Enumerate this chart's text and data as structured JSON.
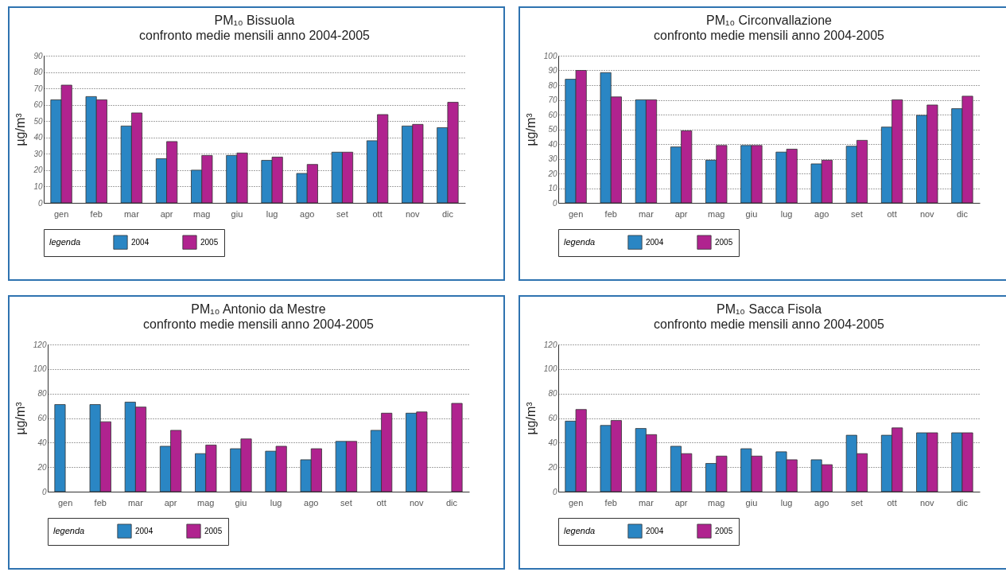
{
  "chart_data": [
    {
      "type": "bar",
      "title": "PM₁₀ Bissuola",
      "subtitle": "confronto medie mensili anno 2004-2005",
      "ylabel": "µg/m³",
      "categories": [
        "gen",
        "feb",
        "mar",
        "apr",
        "mag",
        "giu",
        "lug",
        "ago",
        "set",
        "ott",
        "nov",
        "dic"
      ],
      "series": [
        {
          "name": "2004",
          "color": "#2a86c4",
          "values": [
            63,
            65,
            47,
            27,
            20,
            29,
            26,
            18,
            31,
            38,
            47,
            46
          ]
        },
        {
          "name": "2005",
          "color": "#b0238f",
          "values": [
            72,
            63,
            55,
            37.5,
            29,
            30.5,
            28,
            23.5,
            31,
            54,
            48,
            61.5
          ]
        }
      ],
      "ylim": [
        0,
        90
      ],
      "yticks": [
        0,
        10,
        20,
        30,
        40,
        50,
        60,
        70,
        80,
        90
      ],
      "grid": "y",
      "legend": "bottom",
      "legend_title": "legenda"
    },
    {
      "type": "bar",
      "title": "PM₁₀ Circonvallazione",
      "subtitle": "confronto medie mensili anno 2004-2005",
      "ylabel": "µg/m³",
      "categories": [
        "gen",
        "feb",
        "mar",
        "apr",
        "mag",
        "giu",
        "lug",
        "ago",
        "set",
        "ott",
        "nov",
        "dic"
      ],
      "series": [
        {
          "name": "2004",
          "color": "#2a86c4",
          "values": [
            84,
            88.5,
            70,
            38,
            29,
            39,
            34.5,
            26.5,
            38.5,
            51.5,
            59.5,
            64
          ]
        },
        {
          "name": "2005",
          "color": "#b0238f",
          "values": [
            90,
            72,
            70,
            49,
            39,
            39,
            36.5,
            29,
            42.5,
            70,
            66.5,
            72.5
          ]
        }
      ],
      "ylim": [
        0,
        100
      ],
      "yticks": [
        0,
        10,
        20,
        30,
        40,
        50,
        60,
        70,
        80,
        90,
        100
      ],
      "grid": "y",
      "legend": "bottom",
      "legend_title": "legenda"
    },
    {
      "type": "bar",
      "title": "PM₁₀ Antonio da Mestre",
      "subtitle": "confronto medie mensili anno 2004-2005",
      "ylabel": "µg/m³",
      "categories": [
        "gen",
        "feb",
        "mar",
        "apr",
        "mag",
        "giu",
        "lug",
        "ago",
        "set",
        "ott",
        "nov",
        "dic"
      ],
      "series": [
        {
          "name": "2004",
          "color": "#2a86c4",
          "values": [
            71,
            71,
            73,
            37,
            31,
            35,
            33,
            26,
            41,
            50,
            64,
            null
          ]
        },
        {
          "name": "2005",
          "color": "#b0238f",
          "values": [
            null,
            57,
            69,
            50,
            38,
            43,
            37,
            35,
            41,
            64,
            65,
            72
          ]
        }
      ],
      "ylim": [
        0,
        120
      ],
      "yticks": [
        0,
        20,
        40,
        60,
        80,
        100,
        120
      ],
      "grid": "y",
      "legend": "bottom",
      "legend_title": "legenda"
    },
    {
      "type": "bar",
      "title": "PM₁₀ Sacca Fisola",
      "subtitle": "confronto medie mensili anno 2004-2005",
      "ylabel": "µg/m³",
      "categories": [
        "gen",
        "feb",
        "mar",
        "apr",
        "mag",
        "giu",
        "lug",
        "ago",
        "set",
        "ott",
        "nov",
        "dic"
      ],
      "series": [
        {
          "name": "2004",
          "color": "#2a86c4",
          "values": [
            57.5,
            54,
            51.5,
            37,
            23,
            35,
            32.5,
            26,
            46,
            46,
            48,
            48
          ]
        },
        {
          "name": "2005",
          "color": "#b0238f",
          "values": [
            67,
            58,
            46.5,
            31,
            29,
            29,
            26,
            22,
            31,
            52,
            48,
            48
          ]
        }
      ],
      "ylim": [
        0,
        120
      ],
      "yticks": [
        0,
        20,
        40,
        60,
        80,
        100,
        120
      ],
      "grid": "y",
      "legend": "bottom",
      "legend_title": "legenda"
    }
  ]
}
